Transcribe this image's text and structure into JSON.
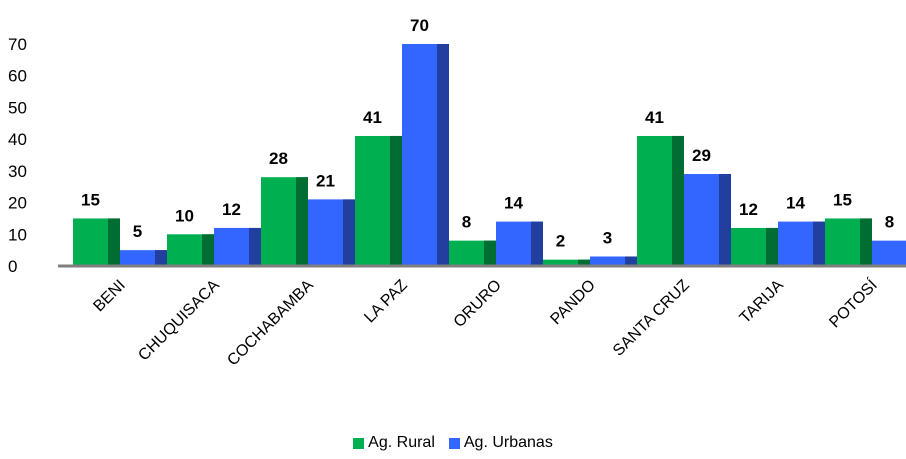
{
  "chart_data": {
    "type": "bar",
    "title": "",
    "xlabel": "",
    "ylabel": "",
    "categories": [
      "BENI",
      "CHUQUISACA",
      "COCHABAMBA",
      "LA PAZ",
      "ORURO",
      "PANDO",
      "SANTA CRUZ",
      "TARIJA",
      "POTOSÍ"
    ],
    "series": [
      {
        "name": "Ag. Rural",
        "color": "#00b050",
        "values": [
          15,
          10,
          28,
          41,
          8,
          2,
          41,
          12,
          15
        ]
      },
      {
        "name": "Ag. Urbanas",
        "color": "#3366ff",
        "values": [
          5,
          12,
          21,
          70,
          14,
          3,
          29,
          14,
          8
        ]
      }
    ],
    "yticks": [
      "0",
      "10",
      "20",
      "30",
      "40",
      "50",
      "60",
      "70"
    ],
    "ylim": [
      0,
      70
    ],
    "grid": false,
    "legend_position": "bottom"
  }
}
